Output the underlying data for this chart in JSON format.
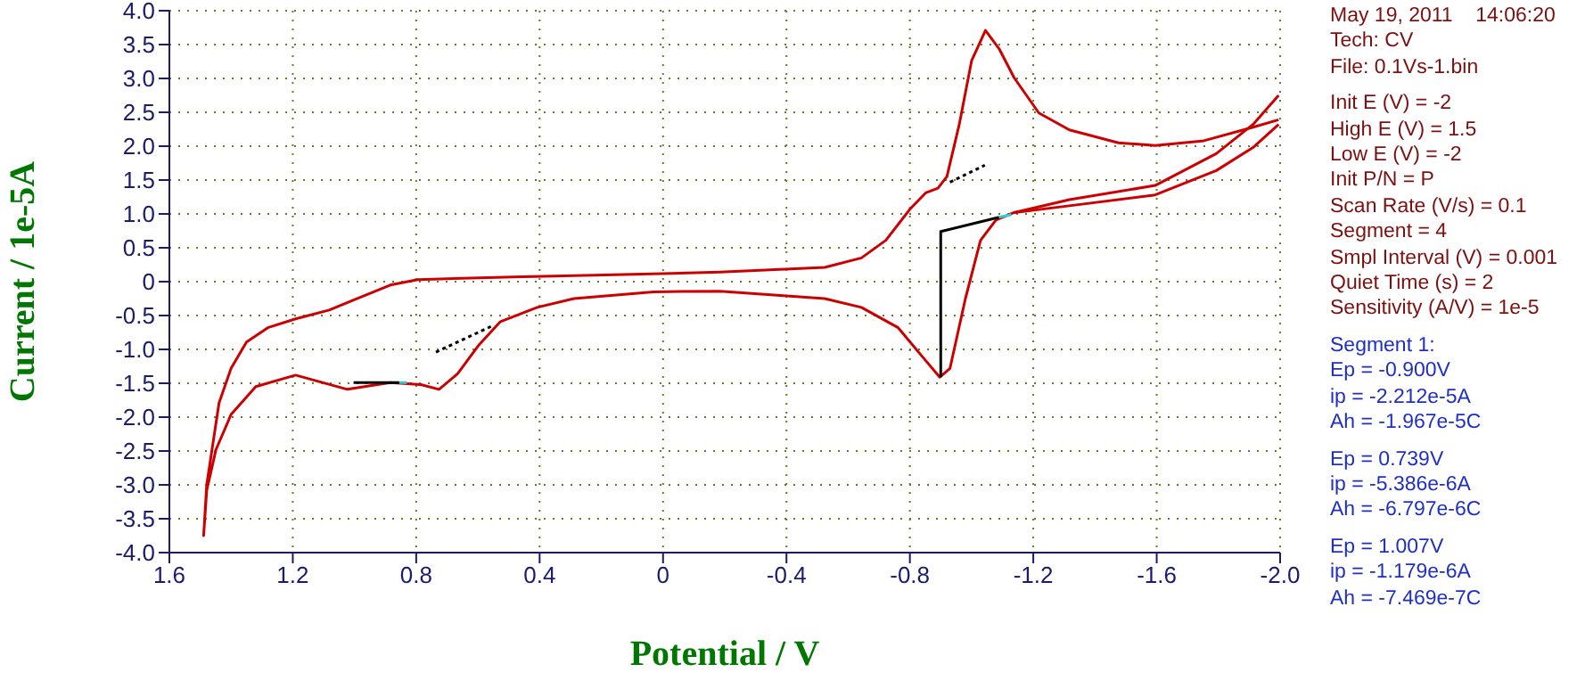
{
  "chart_data": {
    "type": "line",
    "xlabel": "Potential / V",
    "ylabel": "Current / 1e-5A",
    "xlim": [
      1.6,
      -2.0
    ],
    "xticks": [
      1.6,
      1.2,
      0.8,
      0.4,
      0,
      -0.4,
      -0.8,
      -1.2,
      -1.6,
      {
        "value": -2.0,
        "label": "-2.0"
      }
    ],
    "ylim": [
      -4.0,
      4.0
    ],
    "yticks": [
      {
        "value": -4.0,
        "label": "-4.0"
      },
      -3.5,
      {
        "value": -3.0,
        "label": "-3.0"
      },
      -2.5,
      {
        "value": -2.0,
        "label": "-2.0"
      },
      -1.5,
      {
        "value": -1.0,
        "label": "-1.0"
      },
      -0.5,
      0,
      0.5,
      {
        "value": 1.0,
        "label": "1.0"
      },
      1.5,
      {
        "value": 2.0,
        "label": "2.0"
      },
      2.5,
      {
        "value": 3.0,
        "label": "3.0"
      },
      3.5,
      {
        "value": 4.0,
        "label": "4.0"
      }
    ],
    "grid": true,
    "marker": "none",
    "line_style": "solid",
    "series": [
      {
        "color": "#cc0000",
        "x": [
          -1.995,
          -1.912,
          -1.793,
          -1.595,
          -1.317,
          -1.138,
          -1.079,
          -1.029,
          -0.98,
          -0.93,
          -0.897,
          -0.841,
          -0.762,
          -0.643,
          -0.524,
          -0.185,
          0.031,
          0.289,
          0.408,
          0.527,
          0.596,
          0.666,
          0.726,
          0.785,
          0.884,
          1.023,
          1.191,
          1.32,
          1.4,
          1.449,
          1.479,
          1.489,
          1.479,
          1.439,
          1.4,
          1.35,
          1.281,
          1.191,
          1.082,
          1.003,
          0.884,
          0.795,
          0.487,
          0.19,
          -0.185,
          -0.524,
          -0.643,
          -0.722,
          -0.802,
          -0.851,
          -0.891,
          -0.92,
          -0.96,
          -1.0,
          -1.045,
          -1.089,
          -1.138,
          -1.218,
          -1.317,
          -1.476,
          -1.595,
          -1.753,
          -1.912,
          -1.995
        ],
        "values": [
          2.32,
          1.98,
          1.64,
          1.28,
          1.12,
          1.02,
          0.91,
          0.61,
          -0.25,
          -1.28,
          -1.41,
          -1.11,
          -0.68,
          -0.38,
          -0.25,
          -0.14,
          -0.15,
          -0.25,
          -0.38,
          -0.59,
          -0.93,
          -1.36,
          -1.59,
          -1.52,
          -1.49,
          -1.59,
          -1.38,
          -1.55,
          -1.96,
          -2.48,
          -3.08,
          -3.75,
          -3.0,
          -1.79,
          -1.28,
          -0.89,
          -0.68,
          -0.55,
          -0.42,
          -0.27,
          -0.05,
          0.03,
          0.07,
          0.1,
          0.14,
          0.21,
          0.35,
          0.61,
          1.08,
          1.31,
          1.38,
          1.55,
          2.32,
          3.26,
          3.71,
          3.44,
          3.01,
          2.49,
          2.24,
          2.05,
          2.01,
          2.08,
          2.28,
          2.39
        ]
      },
      {
        "color": "#cc0000",
        "x": [
          -1.138,
          -1.317,
          -1.595,
          -1.793,
          -1.912,
          -1.995
        ],
        "values": [
          1.02,
          1.21,
          1.42,
          1.89,
          2.32,
          2.75
        ]
      },
      {
        "color": "#000000",
        "x": [
          1.003,
          0.855
        ],
        "values": [
          -1.49,
          -1.49
        ]
      },
      {
        "color": "#33cccc",
        "x": [
          0.855,
          0.83
        ],
        "values": [
          -1.49,
          -1.49
        ]
      },
      {
        "color": "#000000",
        "line_style": "dotted",
        "x": [
          0.736,
          0.557
        ],
        "values": [
          -1.04,
          -0.66
        ]
      },
      {
        "color": "#000000",
        "line_style": "dotted",
        "x": [
          -0.93,
          -1.043
        ],
        "values": [
          1.47,
          1.72
        ]
      },
      {
        "color": "#000000",
        "x": [
          -0.9,
          -0.9,
          -1.089
        ],
        "values": [
          -1.41,
          0.74,
          0.95
        ]
      },
      {
        "color": "#33cccc",
        "x": [
          -1.089,
          -1.129
        ],
        "values": [
          0.95,
          0.99
        ]
      }
    ],
    "annotations": [
      "May 19, 2011    14:06:20",
      "Tech: CV",
      "File: 0.1Vs-1.bin",
      "Init E (V) = -2",
      "High E (V) = 1.5",
      "Low E (V) = -2",
      "Init P/N = P",
      "Scan Rate (V/s) = 0.1",
      "Segment = 4",
      "Smpl Interval (V) = 0.001",
      "Quiet Time (s) = 2",
      "Sensitivity (A/V) = 1e-5",
      "Segment 1:",
      "Ep = -0.900V",
      "ip = -2.212e-5A",
      "Ah = -1.967e-5C",
      "Ep = 0.739V",
      "ip = -5.386e-6A",
      "Ah = -6.797e-6C",
      "Ep = 1.007V",
      "ip = -1.179e-6A",
      "Ah = -7.469e-7C"
    ]
  }
}
